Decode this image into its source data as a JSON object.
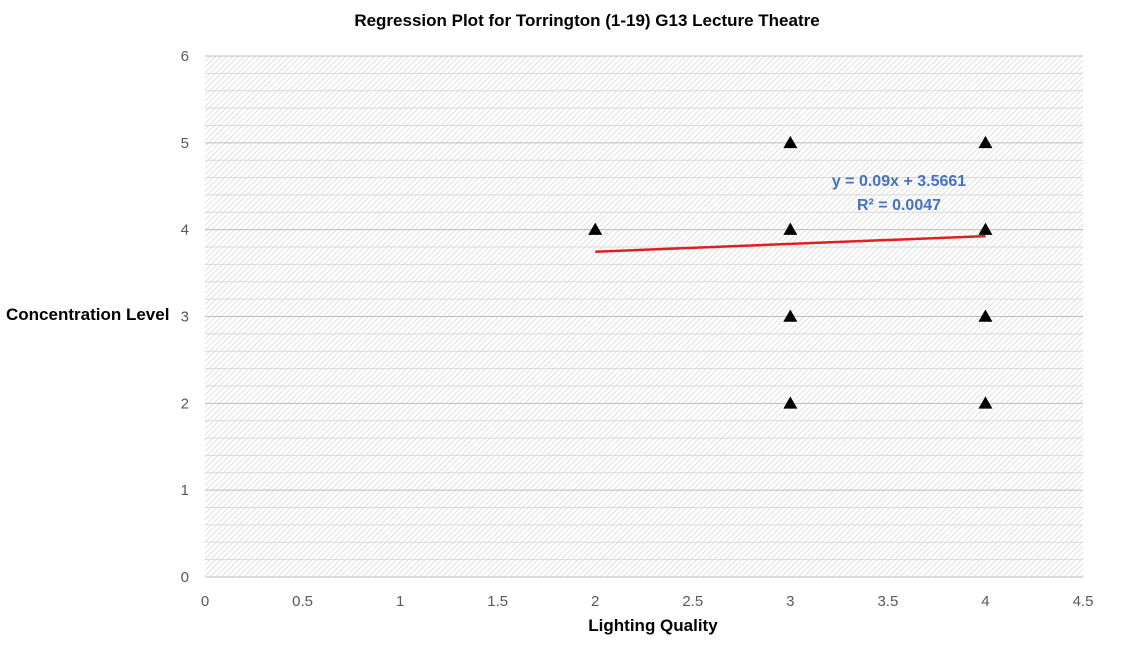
{
  "chart_data": {
    "type": "scatter",
    "title": "Regression Plot for Torrington (1-19) G13 Lecture Theatre",
    "xlabel": "Lighting Quality",
    "ylabel": "Concentration Level",
    "xlim": [
      0,
      4.5
    ],
    "ylim": [
      0,
      6
    ],
    "x_ticks": [
      "0",
      "0.5",
      "1",
      "1.5",
      "2",
      "2.5",
      "3",
      "3.5",
      "4",
      "4.5"
    ],
    "y_ticks": [
      "0",
      "1",
      "2",
      "3",
      "4",
      "5",
      "6"
    ],
    "points": [
      {
        "x": 2,
        "y": 4
      },
      {
        "x": 3,
        "y": 5
      },
      {
        "x": 3,
        "y": 4
      },
      {
        "x": 3,
        "y": 3
      },
      {
        "x": 3,
        "y": 2
      },
      {
        "x": 4,
        "y": 5
      },
      {
        "x": 4,
        "y": 4
      },
      {
        "x": 4,
        "y": 3
      },
      {
        "x": 4,
        "y": 2
      }
    ],
    "trendline": {
      "slope": 0.09,
      "intercept": 3.5661,
      "x_range": [
        2,
        4
      ],
      "equation": "y = 0.09x + 3.5661",
      "r_squared": "R² = 0.0047",
      "color": "#e02020"
    },
    "marker": "triangle",
    "marker_color": "#000000",
    "plot_background": "hatched",
    "grid": true,
    "legend": "none"
  }
}
